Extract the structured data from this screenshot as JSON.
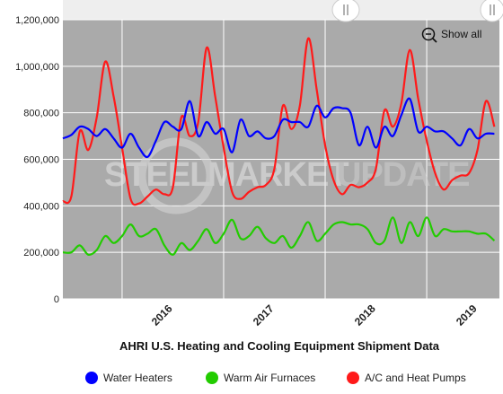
{
  "colors": {
    "plot_bg": "#aaaaaa",
    "grid": "#ffffff",
    "water_heaters": "#0000ff",
    "warm_air_furnaces": "#22cc00",
    "ac_heat_pumps": "#ff1a1a",
    "navigator": "#d9d9d9"
  },
  "ui": {
    "show_all_label": "Show all",
    "show_all_icon": "zoom-out-icon",
    "scroll_handle_icon": "grip-lines-icon"
  },
  "watermark": {
    "part1": "STEEL",
    "part2": "MARKET",
    "part3": "UPDATE"
  },
  "chart_data": {
    "type": "line",
    "title": "AHRI U.S. Heating and Cooling Equipment Shipment Data",
    "xlabel": "",
    "ylabel": "",
    "ylim": [
      0,
      1200000
    ],
    "yticks": [
      0,
      200000,
      400000,
      600000,
      800000,
      1000000,
      1200000
    ],
    "ytick_labels": [
      "0",
      "200,000",
      "400,000",
      "600,000",
      "800,000",
      "1,000,000",
      "1,200,000"
    ],
    "x_start": "2015-06",
    "xticks": [
      "2016",
      "2017",
      "2018",
      "2019"
    ],
    "grid": true,
    "legend_position": "bottom",
    "series": [
      {
        "name": "Water Heaters",
        "color": "#0000ff",
        "values": [
          690000,
          705000,
          740000,
          730000,
          700000,
          730000,
          690000,
          650000,
          710000,
          650000,
          610000,
          680000,
          760000,
          740000,
          730000,
          850000,
          700000,
          760000,
          710000,
          730000,
          630000,
          770000,
          700000,
          720000,
          690000,
          700000,
          770000,
          760000,
          760000,
          740000,
          830000,
          780000,
          820000,
          820000,
          800000,
          660000,
          740000,
          650000,
          740000,
          700000,
          790000,
          860000,
          720000,
          740000,
          720000,
          720000,
          690000,
          660000,
          730000,
          690000,
          710000,
          710000,
          800000,
          790000,
          770000,
          850000,
          660000,
          640000,
          670000
        ]
      },
      {
        "name": "Warm Air Furnaces",
        "color": "#22cc00",
        "values": [
          200000,
          200000,
          230000,
          190000,
          210000,
          270000,
          240000,
          270000,
          320000,
          270000,
          280000,
          300000,
          230000,
          190000,
          240000,
          210000,
          250000,
          300000,
          240000,
          280000,
          340000,
          260000,
          270000,
          310000,
          260000,
          240000,
          270000,
          220000,
          270000,
          330000,
          250000,
          280000,
          320000,
          330000,
          320000,
          320000,
          300000,
          240000,
          250000,
          350000,
          240000,
          330000,
          270000,
          350000,
          270000,
          300000,
          290000,
          290000,
          290000,
          280000,
          280000,
          250000,
          220000,
          200000,
          230000,
          200000,
          160000,
          210000
        ]
      },
      {
        "name": "A/C and Heat Pumps",
        "color": "#ff1a1a",
        "values": [
          420000,
          440000,
          720000,
          640000,
          780000,
          1020000,
          870000,
          650000,
          430000,
          410000,
          440000,
          470000,
          450000,
          480000,
          780000,
          700000,
          760000,
          1080000,
          870000,
          650000,
          460000,
          430000,
          460000,
          480000,
          490000,
          560000,
          830000,
          730000,
          830000,
          1120000,
          900000,
          660000,
          510000,
          450000,
          490000,
          480000,
          500000,
          560000,
          810000,
          740000,
          840000,
          1070000,
          860000,
          680000,
          540000,
          470000,
          510000,
          530000,
          540000,
          640000,
          850000,
          740000,
          640000,
          680000,
          780000
        ]
      }
    ]
  }
}
